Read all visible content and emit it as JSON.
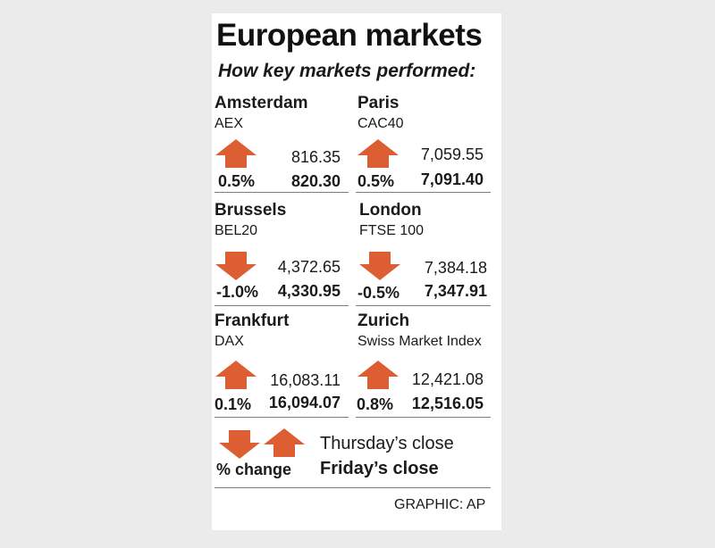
{
  "title": "European markets",
  "subtitle": "How key markets performed:",
  "colors": {
    "arrow": "#dc5e32",
    "background": "#ebebeb",
    "card": "#ffffff"
  },
  "markets": [
    {
      "name": "Amsterdam",
      "index": "AEX",
      "direction": "up",
      "change": "0.5%",
      "thursday_close": "816.35",
      "friday_close": "820.30"
    },
    {
      "name": "Paris",
      "index": "CAC40",
      "direction": "up",
      "change": "0.5%",
      "thursday_close": "7,059.55",
      "friday_close": "7,091.40"
    },
    {
      "name": "Brussels",
      "index": "BEL20",
      "direction": "down",
      "change": "-1.0%",
      "thursday_close": "4,372.65",
      "friday_close": "4,330.95"
    },
    {
      "name": "London",
      "index": "FTSE 100",
      "direction": "down",
      "change": "-0.5%",
      "thursday_close": "7,384.18",
      "friday_close": "7,347.91"
    },
    {
      "name": "Frankfurt",
      "index": "DAX",
      "direction": "up",
      "change": "0.1%",
      "thursday_close": "16,083.11",
      "friday_close": "16,094.07"
    },
    {
      "name": "Zurich",
      "index": "Swiss Market Index",
      "direction": "up",
      "change": "0.8%",
      "thursday_close": "12,421.08",
      "friday_close": "12,516.05"
    }
  ],
  "legend": {
    "change_label": "% change",
    "thursday_label": "Thursday’s close",
    "friday_label": "Friday’s close",
    "arrow_icons": [
      "arrow-down-icon",
      "arrow-up-icon"
    ]
  },
  "credit": "GRAPHIC: AP"
}
